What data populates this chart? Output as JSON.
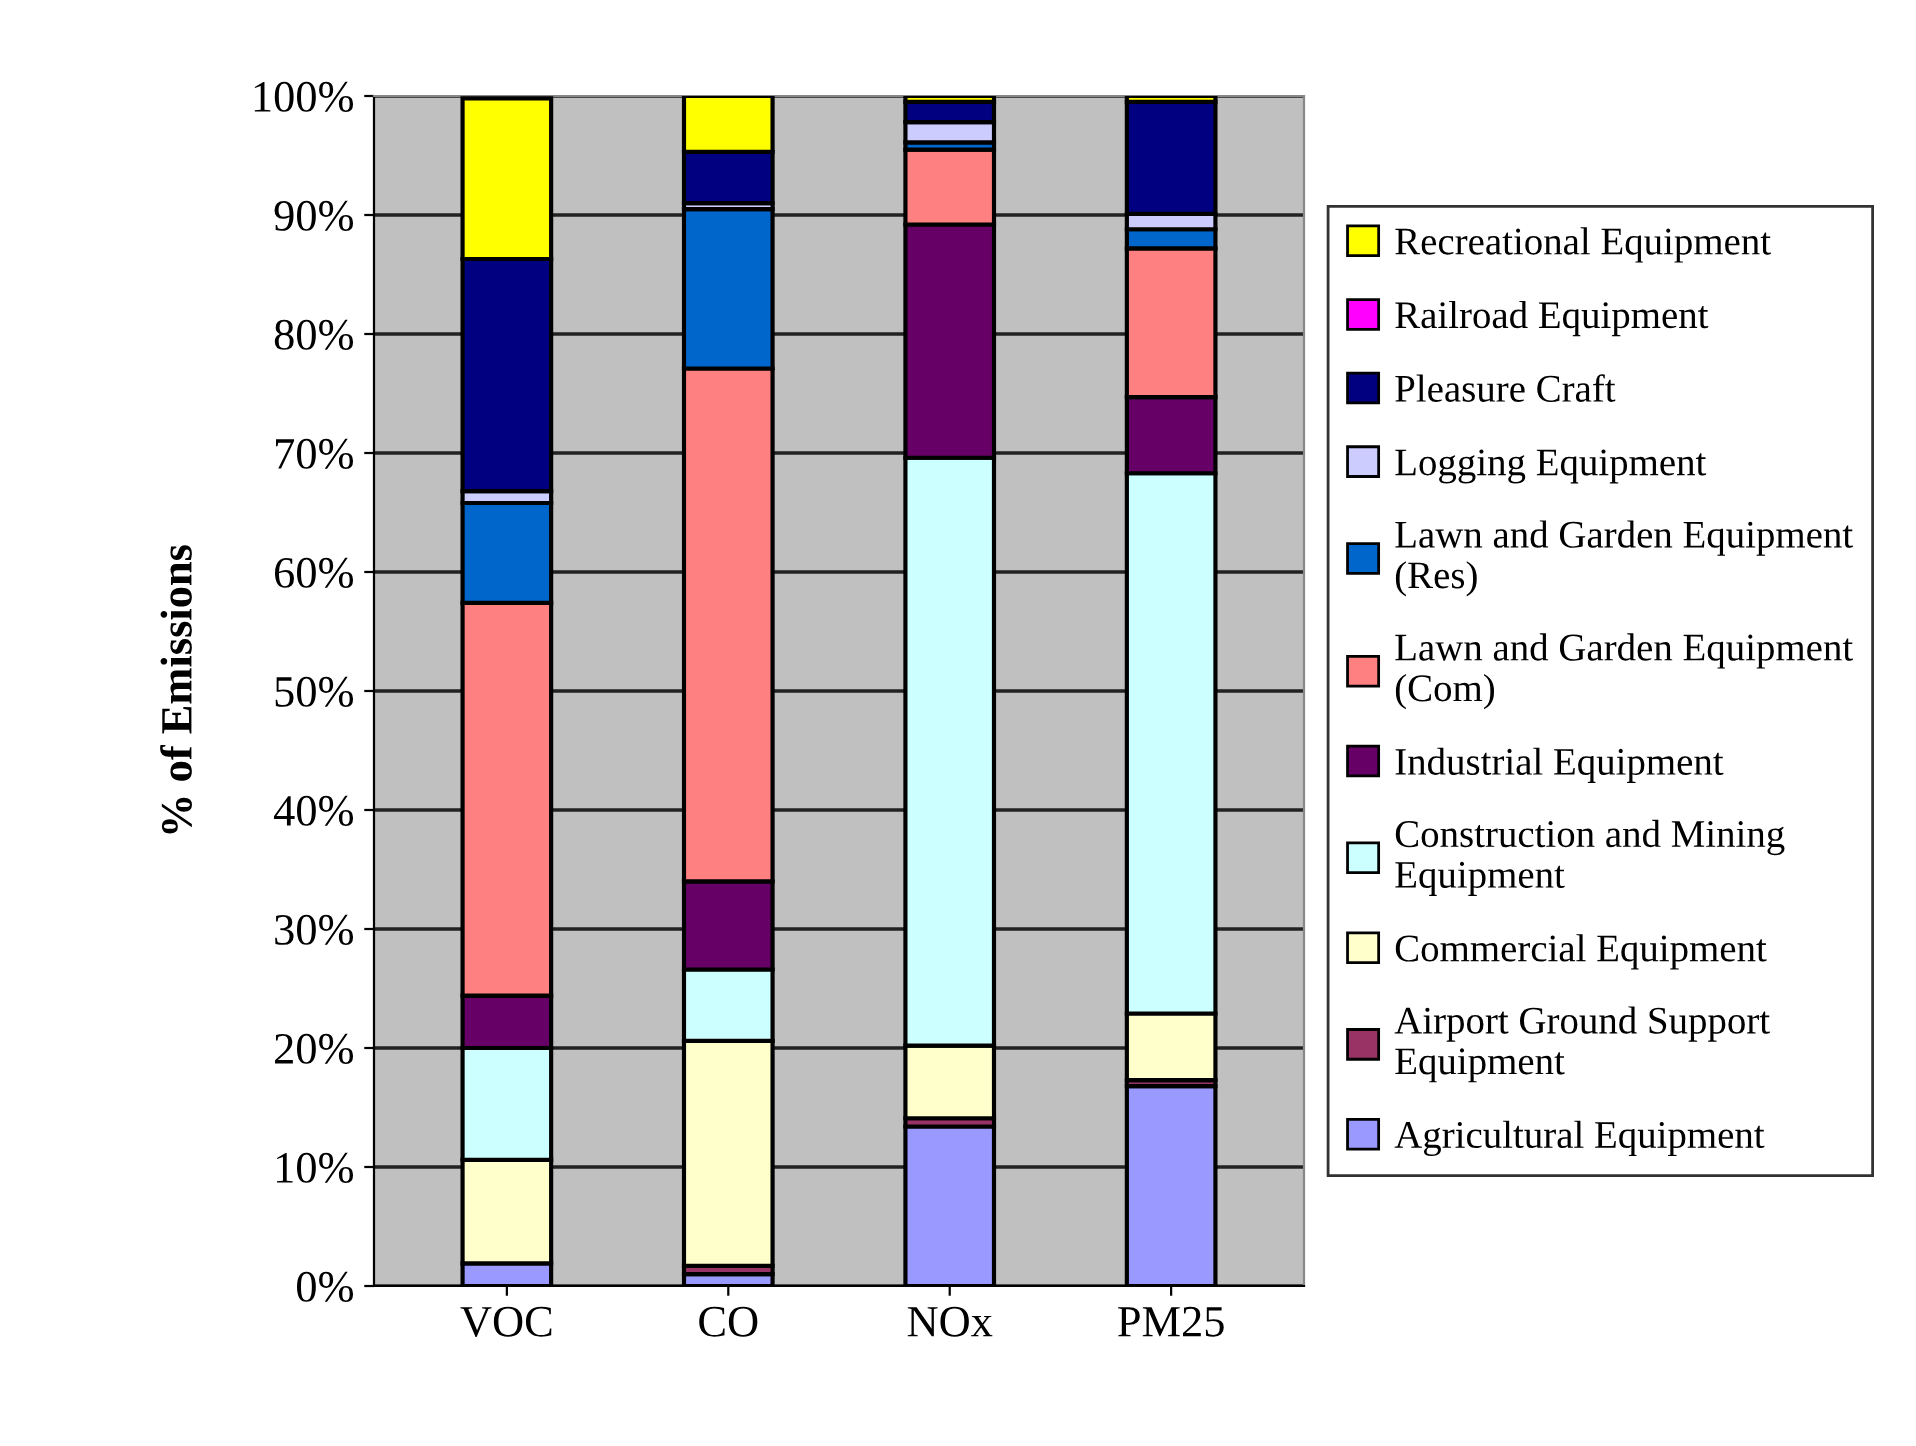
{
  "chart_data": {
    "type": "bar",
    "stacked": true,
    "ylabel": "% of Emissions",
    "categories": [
      "VOC",
      "CO",
      "NOx",
      "PM25"
    ],
    "ylim": [
      0,
      100
    ],
    "yticks": [
      {
        "value": 0,
        "label": "0%"
      },
      {
        "value": 10,
        "label": "10%"
      },
      {
        "value": 20,
        "label": "20%"
      },
      {
        "value": 30,
        "label": "30%"
      },
      {
        "value": 40,
        "label": "40%"
      },
      {
        "value": 50,
        "label": "50%"
      },
      {
        "value": 60,
        "label": "60%"
      },
      {
        "value": 70,
        "label": "70%"
      },
      {
        "value": 80,
        "label": "80%"
      },
      {
        "value": 90,
        "label": "90%"
      },
      {
        "value": 100,
        "label": "100%"
      }
    ],
    "grid": "y",
    "legend": "right",
    "series": [
      {
        "name": "Agricultural Equipment",
        "color": "#9999ff",
        "values": [
          1.9,
          1.0,
          13.4,
          16.8
        ]
      },
      {
        "name": "Airport Ground Support\nEquipment",
        "color": "#993366",
        "values": [
          null,
          0.7,
          0.7,
          0.5
        ]
      },
      {
        "name": "Commercial Equipment",
        "color": "#ffffcc",
        "values": [
          8.7,
          18.9,
          6.1,
          5.6
        ]
      },
      {
        "name": "Construction and Mining\nEquipment",
        "color": "#ccffff",
        "values": [
          9.4,
          6.0,
          49.4,
          45.4
        ]
      },
      {
        "name": "Industrial Equipment",
        "color": "#660066",
        "values": [
          4.4,
          7.4,
          19.6,
          6.4
        ]
      },
      {
        "name": "Lawn and Garden Equipment\n(Com)",
        "color": "#ff8080",
        "values": [
          33.0,
          43.1,
          6.3,
          12.5
        ]
      },
      {
        "name": "Lawn and Garden Equipment\n(Res)",
        "color": "#0066cc",
        "values": [
          8.4,
          13.4,
          0.6,
          1.6
        ]
      },
      {
        "name": "Logging Equipment",
        "color": "#ccccff",
        "values": [
          1.0,
          0.5,
          1.7,
          1.3
        ]
      },
      {
        "name": "Pleasure Craft",
        "color": "#000080",
        "values": [
          19.5,
          4.3,
          1.7,
          9.4
        ]
      },
      {
        "name": "Railroad Equipment",
        "color": "#ff00ff",
        "values": [
          0,
          0,
          0,
          0
        ]
      },
      {
        "name": "Recreational Equipment",
        "color": "#ffff00",
        "values": [
          13.5,
          4.7,
          0.5,
          0.5
        ]
      }
    ]
  }
}
